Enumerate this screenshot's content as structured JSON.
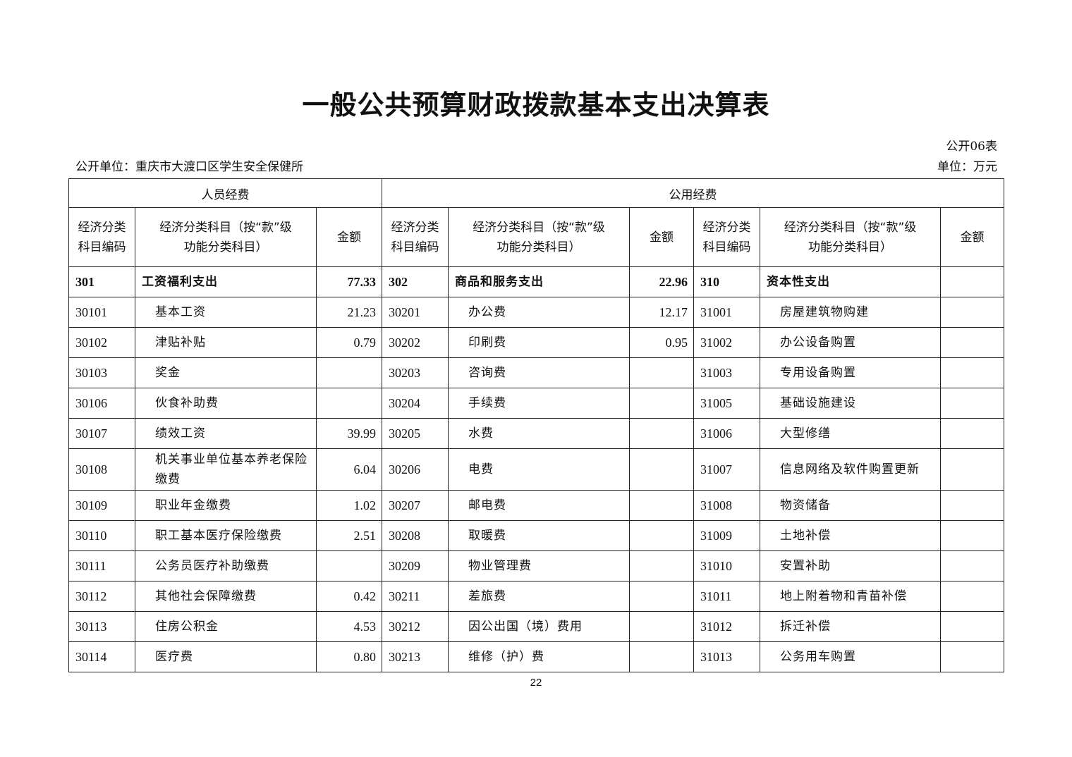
{
  "title": "一般公共预算财政拨款基本支出决算表",
  "form_no": "公开06表",
  "unit_label": "公开单位：重庆市大渡口区学生安全保健所",
  "money_unit": "单位：万元",
  "groups": [
    "人员经费",
    "公用经费"
  ],
  "columns": {
    "code": "经济分类科目编码",
    "name": "经济分类科目（按“款”级功能分类科目）",
    "amount": "金额"
  },
  "rows": [
    [
      "301",
      "工资福利支出",
      "77.33",
      "302",
      "商品和服务支出",
      "22.96",
      "310",
      "资本性支出",
      ""
    ],
    [
      "30101",
      "基本工资",
      "21.23",
      "30201",
      "办公费",
      "12.17",
      "31001",
      "房屋建筑物购建",
      ""
    ],
    [
      "30102",
      "津贴补贴",
      "0.79",
      "30202",
      "印刷费",
      "0.95",
      "31002",
      "办公设备购置",
      ""
    ],
    [
      "30103",
      "奖金",
      "",
      "30203",
      "咨询费",
      "",
      "31003",
      "专用设备购置",
      ""
    ],
    [
      "30106",
      "伙食补助费",
      "",
      "30204",
      "手续费",
      "",
      "31005",
      "基础设施建设",
      ""
    ],
    [
      "30107",
      "绩效工资",
      "39.99",
      "30205",
      "水费",
      "",
      "31006",
      "大型修缮",
      ""
    ],
    [
      "30108",
      "机关事业单位基本养老保险缴费",
      "6.04",
      "30206",
      "电费",
      "",
      "31007",
      "信息网络及软件购置更新",
      ""
    ],
    [
      "30109",
      "职业年金缴费",
      "1.02",
      "30207",
      "邮电费",
      "",
      "31008",
      "物资储备",
      ""
    ],
    [
      "30110",
      "职工基本医疗保险缴费",
      "2.51",
      "30208",
      "取暖费",
      "",
      "31009",
      "土地补偿",
      ""
    ],
    [
      "30111",
      "公务员医疗补助缴费",
      "",
      "30209",
      "物业管理费",
      "",
      "31010",
      "安置补助",
      ""
    ],
    [
      "30112",
      "其他社会保障缴费",
      "0.42",
      "30211",
      "差旅费",
      "",
      "31011",
      "地上附着物和青苗补偿",
      ""
    ],
    [
      "30113",
      "住房公积金",
      "4.53",
      "30212",
      "因公出国（境）费用",
      "",
      "31012",
      "拆迁补偿",
      ""
    ],
    [
      "30114",
      "医疗费",
      "0.80",
      "30213",
      "维修（护）费",
      "",
      "31013",
      "公务用车购置",
      ""
    ]
  ],
  "page_number": "22"
}
